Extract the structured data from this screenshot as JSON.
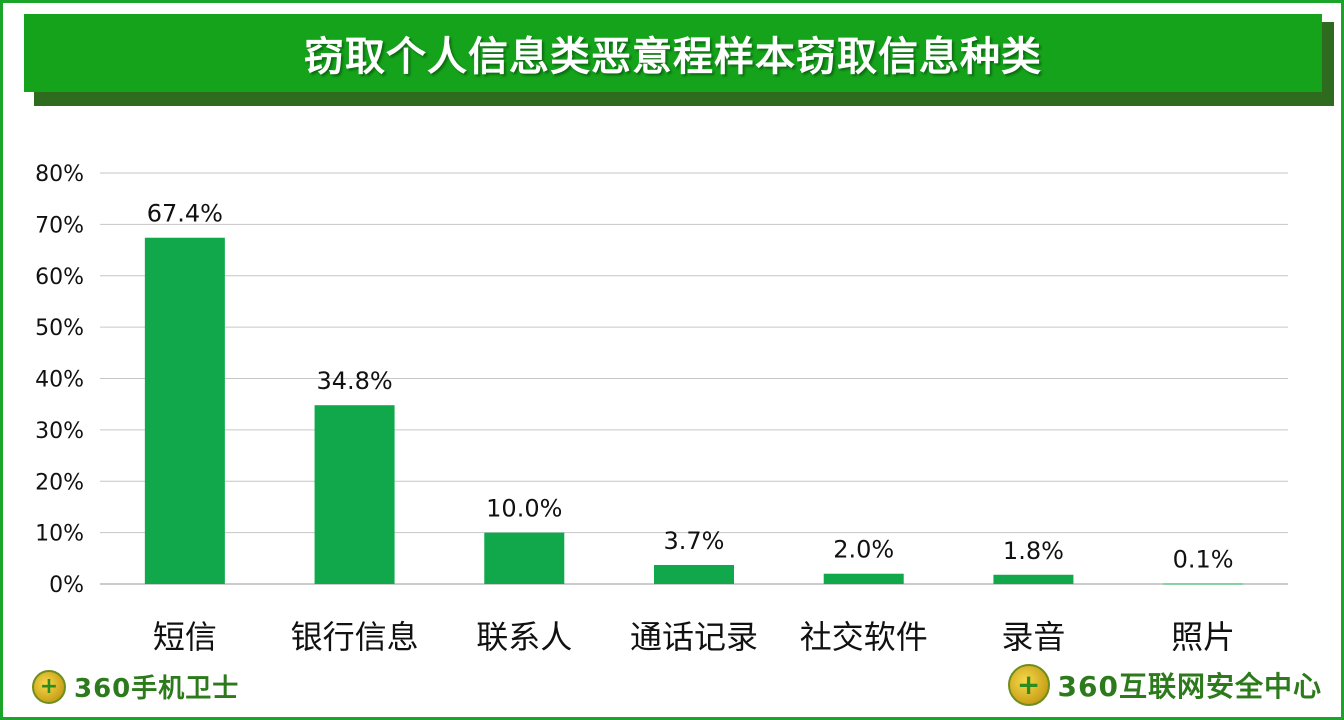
{
  "title": "窃取个人信息类恶意程样本窃取信息种类",
  "footer": {
    "left_brand": "360手机卫士",
    "right_brand": "360互联网安全中心"
  },
  "colors": {
    "bar": "#10a84a",
    "title_bg": "#14a31a",
    "frame": "#1aa52a"
  },
  "chart_data": {
    "type": "bar",
    "title": "窃取个人信息类恶意程样本窃取信息种类",
    "categories": [
      "短信",
      "银行信息",
      "联系人",
      "通话记录",
      "社交软件",
      "录音",
      "照片"
    ],
    "values": [
      67.4,
      34.8,
      10.0,
      3.7,
      2.0,
      1.8,
      0.1
    ],
    "data_labels": [
      "67.4%",
      "34.8%",
      "10.0%",
      "3.7%",
      "2.0%",
      "1.8%",
      "0.1%"
    ],
    "yticks": [
      "0%",
      "10%",
      "20%",
      "30%",
      "40%",
      "50%",
      "60%",
      "70%",
      "80%"
    ],
    "ylim": [
      0,
      80
    ],
    "grid": true,
    "legend": "none"
  }
}
